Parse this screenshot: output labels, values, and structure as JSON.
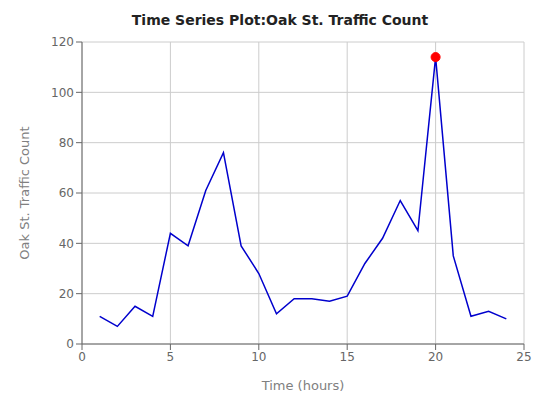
{
  "chart_data": {
    "type": "line",
    "title": "Time Series Plot:Oak St. Traffic Count",
    "xlabel": "Time (hours)",
    "ylabel": "Oak St. Traffic Count",
    "series": [
      {
        "type": "line",
        "color": "#0000CD",
        "x": [
          1,
          2,
          3,
          4,
          5,
          6,
          7,
          8,
          9,
          10,
          11,
          12,
          13,
          14,
          15,
          16,
          17,
          18,
          19,
          20,
          21,
          22,
          23,
          24
        ],
        "values": [
          11,
          7,
          15,
          11,
          44,
          39,
          61,
          76,
          39,
          28,
          12,
          18,
          18,
          17,
          19,
          32,
          42,
          57,
          45,
          114,
          35,
          11,
          13,
          10
        ]
      },
      {
        "type": "scatter",
        "color": "#FF0000",
        "marker": "circle",
        "x": [
          20
        ],
        "values": [
          114
        ]
      }
    ],
    "xlim": [
      0,
      25
    ],
    "ylim": [
      0,
      120
    ],
    "xticks": [
      0,
      5,
      10,
      15,
      20,
      25
    ],
    "yticks": [
      0,
      20,
      40,
      60,
      80,
      100,
      120
    ],
    "grid": true
  }
}
